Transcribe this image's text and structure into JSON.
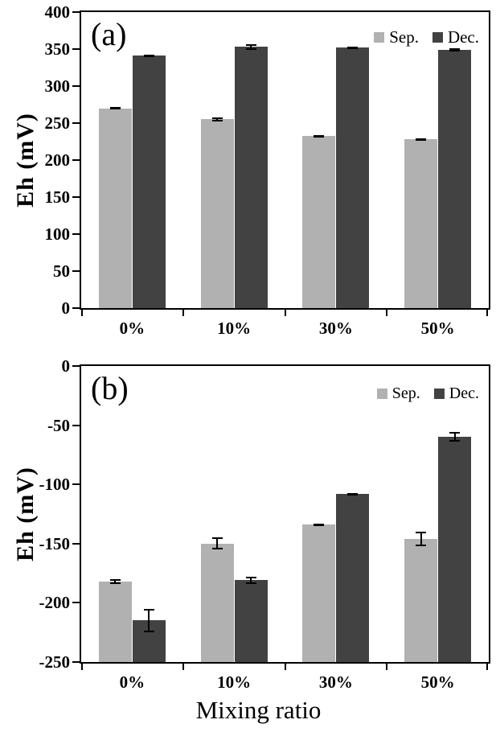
{
  "figure": {
    "xlabel": "Mixing ratio",
    "background": "#ffffff",
    "axis_color": "#000000",
    "errorbar_color": "#000000"
  },
  "chart_data": [
    {
      "type": "bar",
      "panel": "(a)",
      "ylabel": "Eh (mV)",
      "categories": [
        "0%",
        "10%",
        "30%",
        "50%"
      ],
      "series": [
        {
          "name": "Sep.",
          "color": "#b1b1b1",
          "values": [
            270,
            255,
            233,
            228
          ],
          "errors": [
            2,
            3,
            1,
            1
          ]
        },
        {
          "name": "Dec.",
          "color": "#424242",
          "values": [
            341,
            353,
            352,
            349
          ],
          "errors": [
            1,
            4,
            1,
            2
          ]
        }
      ],
      "ylim": [
        0,
        400
      ],
      "yticks": [
        0,
        50,
        100,
        150,
        200,
        250,
        300,
        350,
        400
      ],
      "grid": false,
      "legend_position": "top-right"
    },
    {
      "type": "bar",
      "panel": "(b)",
      "ylabel": "Eh (mV)",
      "categories": [
        "0%",
        "10%",
        "30%",
        "50%"
      ],
      "series": [
        {
          "name": "Sep.",
          "color": "#b1b1b1",
          "values": [
            -182,
            -150,
            -134,
            -146
          ],
          "errors": [
            2,
            5,
            1,
            6
          ]
        },
        {
          "name": "Dec.",
          "color": "#424242",
          "values": [
            -215,
            -181,
            -108,
            -60
          ],
          "errors": [
            10,
            3,
            1,
            4
          ]
        }
      ],
      "ylim": [
        -250,
        0
      ],
      "yticks": [
        0,
        -50,
        -100,
        -150,
        -200,
        -250
      ],
      "grid": false,
      "legend_position": "top-right"
    }
  ]
}
